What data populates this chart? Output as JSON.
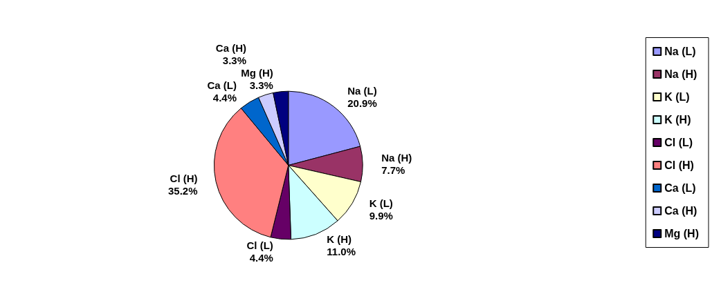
{
  "chart_data": {
    "type": "pie",
    "categories": [
      "Na (L)",
      "Na (H)",
      "K (L)",
      "K (H)",
      "Cl (L)",
      "Cl (H)",
      "Ca (L)",
      "Ca (H)",
      "Mg (H)"
    ],
    "values": [
      20.9,
      7.7,
      9.9,
      11.0,
      4.4,
      35.2,
      4.4,
      3.3,
      3.3
    ],
    "value_labels": [
      "20.9%",
      "7.7%",
      "9.9%",
      "11.0%",
      "4.4%",
      "35.2%",
      "4.4%",
      "3.3%",
      "3.3%"
    ],
    "colors": [
      "#9999ff",
      "#993366",
      "#ffffcc",
      "#ccffff",
      "#660066",
      "#ff8080",
      "#0066cc",
      "#ccccff",
      "#000080"
    ],
    "legend": "right"
  }
}
